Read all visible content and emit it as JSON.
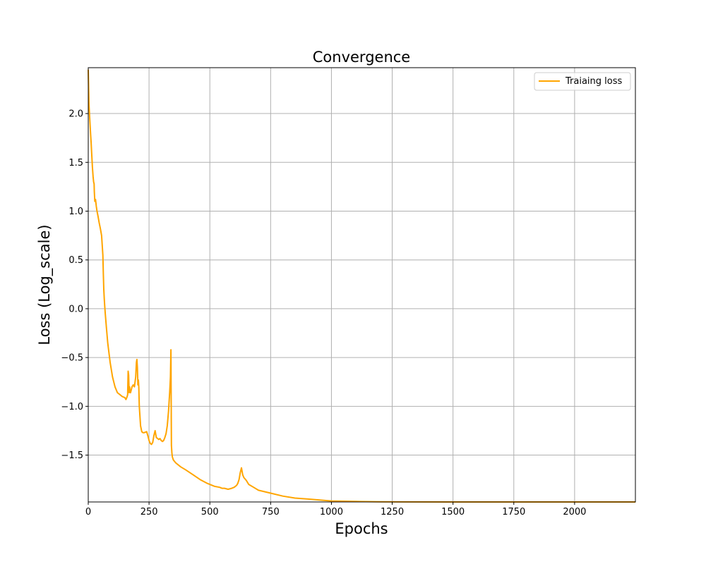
{
  "chart_data": {
    "type": "line",
    "title": "Convergence",
    "xlabel": "Epochs",
    "ylabel": "Loss (Log_scale)",
    "xlim": [
      0,
      2250
    ],
    "ylim": [
      -1.98,
      2.47
    ],
    "xticks": [
      0,
      250,
      500,
      750,
      1000,
      1250,
      1500,
      1750,
      2000
    ],
    "xtick_labels": [
      "0",
      "250",
      "500",
      "750",
      "1000",
      "1250",
      "1500",
      "1750",
      "2000"
    ],
    "yticks": [
      -1.5,
      -1.0,
      -0.5,
      0.0,
      0.5,
      1.0,
      1.5,
      2.0
    ],
    "ytick_labels": [
      "−1.5",
      "−1.0",
      "−0.5",
      "0.0",
      "0.5",
      "1.0",
      "1.5",
      "2.0"
    ],
    "grid": true,
    "legend_position": "top-right",
    "series": [
      {
        "name": "Traiaing loss",
        "color": "#ffa500",
        "x": [
          0,
          3,
          6,
          9,
          10,
          12,
          14,
          17,
          20,
          22,
          24,
          25,
          27,
          30,
          33,
          36,
          40,
          45,
          50,
          55,
          60,
          62,
          64,
          66,
          68,
          70,
          75,
          80,
          90,
          100,
          110,
          120,
          130,
          140,
          150,
          155,
          160,
          162,
          164,
          166,
          168,
          170,
          172,
          174,
          176,
          180,
          185,
          190,
          195,
          198,
          200,
          202,
          204,
          206,
          208,
          210,
          215,
          220,
          225,
          230,
          240,
          245,
          250,
          255,
          260,
          265,
          270,
          275,
          280,
          285,
          290,
          295,
          300,
          305,
          310,
          315,
          320,
          325,
          330,
          335,
          338,
          340,
          342,
          344,
          346,
          350,
          360,
          380,
          400,
          430,
          460,
          490,
          520,
          540,
          550,
          560,
          575,
          590,
          600,
          610,
          615,
          620,
          625,
          630,
          635,
          640,
          650,
          660,
          680,
          700,
          750,
          800,
          850,
          900,
          1000,
          1100,
          1200,
          1300,
          1500,
          1750,
          2000,
          2250
        ],
        "y": [
          2.45,
          2.1,
          1.95,
          1.82,
          1.78,
          1.7,
          1.6,
          1.45,
          1.35,
          1.3,
          1.28,
          1.2,
          1.1,
          1.12,
          1.05,
          1.0,
          0.95,
          0.88,
          0.82,
          0.75,
          0.55,
          0.35,
          0.2,
          0.1,
          0.02,
          -0.05,
          -0.2,
          -0.35,
          -0.55,
          -0.7,
          -0.8,
          -0.86,
          -0.88,
          -0.9,
          -0.91,
          -0.93,
          -0.9,
          -0.88,
          -0.64,
          -0.68,
          -0.86,
          -0.8,
          -0.85,
          -0.86,
          -0.84,
          -0.8,
          -0.78,
          -0.8,
          -0.7,
          -0.55,
          -0.52,
          -0.6,
          -0.78,
          -0.73,
          -0.8,
          -1.0,
          -1.2,
          -1.26,
          -1.27,
          -1.27,
          -1.26,
          -1.3,
          -1.35,
          -1.38,
          -1.39,
          -1.37,
          -1.3,
          -1.25,
          -1.32,
          -1.33,
          -1.34,
          -1.33,
          -1.35,
          -1.36,
          -1.35,
          -1.32,
          -1.28,
          -1.2,
          -1.05,
          -0.85,
          -0.7,
          -0.42,
          -1.4,
          -1.48,
          -1.52,
          -1.55,
          -1.58,
          -1.62,
          -1.65,
          -1.7,
          -1.75,
          -1.79,
          -1.82,
          -1.83,
          -1.84,
          -1.84,
          -1.85,
          -1.84,
          -1.83,
          -1.81,
          -1.79,
          -1.75,
          -1.68,
          -1.63,
          -1.7,
          -1.73,
          -1.76,
          -1.8,
          -1.83,
          -1.86,
          -1.89,
          -1.92,
          -1.94,
          -1.95,
          -1.97,
          -1.975,
          -1.978,
          -1.979,
          -1.98,
          -1.98,
          -1.98,
          -1.98
        ]
      }
    ]
  }
}
